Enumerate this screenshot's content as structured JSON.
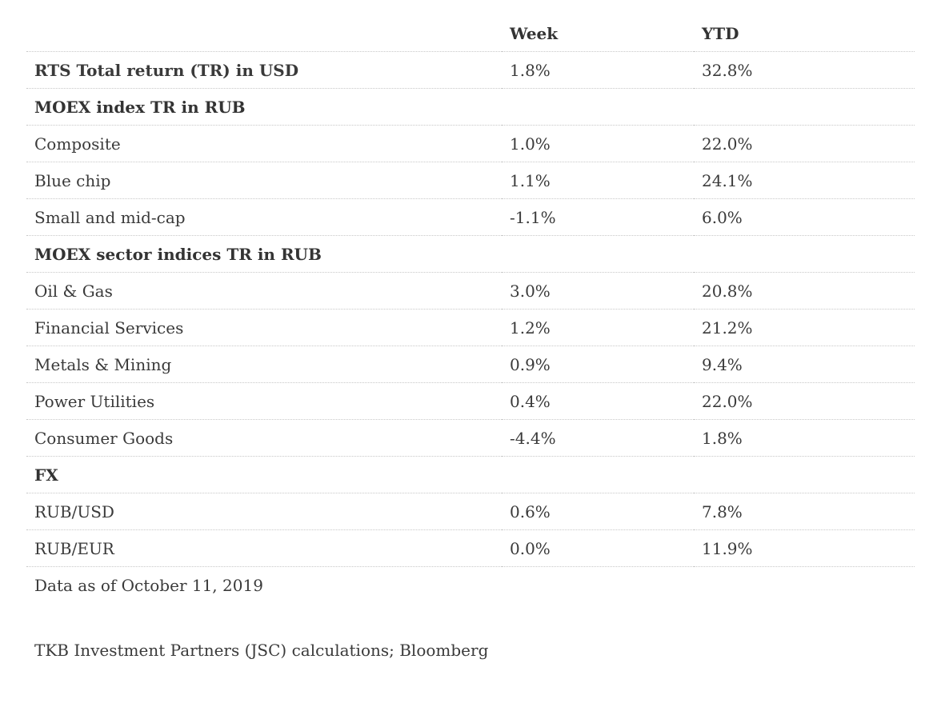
{
  "table": {
    "headers": {
      "label": "",
      "week": "Week",
      "ytd": "YTD"
    },
    "rows": [
      {
        "type": "primary",
        "label": "RTS Total return (TR) in USD",
        "week": "1.8%",
        "ytd": "32.8%"
      },
      {
        "type": "section",
        "label": "MOEX index TR in RUB",
        "week": "",
        "ytd": ""
      },
      {
        "type": "item",
        "label": "Composite",
        "week": "1.0%",
        "ytd": "22.0%"
      },
      {
        "type": "item",
        "label": "Blue chip",
        "week": "1.1%",
        "ytd": "24.1%"
      },
      {
        "type": "item",
        "label": "Small and mid-cap",
        "week": "-1.1%",
        "ytd": "6.0%"
      },
      {
        "type": "section",
        "label": "MOEX sector indices TR in RUB",
        "week": "",
        "ytd": ""
      },
      {
        "type": "item",
        "label": "Oil & Gas",
        "week": "3.0%",
        "ytd": "20.8%"
      },
      {
        "type": "item",
        "label": "Financial Services",
        "week": "1.2%",
        "ytd": "21.2%"
      },
      {
        "type": "item",
        "label": "Metals & Mining",
        "week": "0.9%",
        "ytd": "9.4%"
      },
      {
        "type": "item",
        "label": "Power Utilities",
        "week": "0.4%",
        "ytd": "22.0%"
      },
      {
        "type": "item",
        "label": "Consumer Goods",
        "week": "-4.4%",
        "ytd": "1.8%"
      },
      {
        "type": "section",
        "label": "FX",
        "week": "",
        "ytd": ""
      },
      {
        "type": "item",
        "label": "RUB/USD",
        "week": "0.6%",
        "ytd": "7.8%"
      },
      {
        "type": "item",
        "label": "RUB/EUR",
        "week": "0.0%",
        "ytd": "11.9%"
      }
    ]
  },
  "footnotes": {
    "as_of": "Data as of October 11, 2019",
    "source": "TKB Investment Partners (JSC) calculations; Bloomberg"
  }
}
